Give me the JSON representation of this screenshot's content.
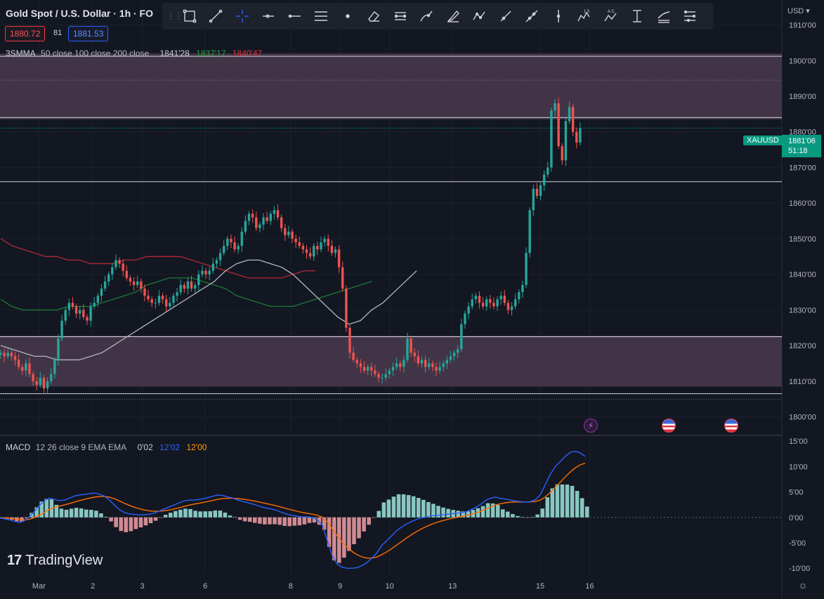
{
  "header": {
    "title": "Gold Spot / U.S. Dollar · 1h · FO",
    "bid": "1880.72",
    "spread": "81",
    "ask": "1881.53",
    "currency": "USD"
  },
  "smma": {
    "label": "3SMMA",
    "params": "50 close 100 close 200 close",
    "v1": "1841'28",
    "v2": "1837'17",
    "v3": "1840'47"
  },
  "macd": {
    "label": "MACD",
    "params": "12 26 close 9 EMA EMA",
    "hist": "0'02",
    "macd_val": "12'02",
    "signal_val": "12'00"
  },
  "symbol_label": "XAUUSD",
  "last_price": "1881'06",
  "countdown": "51:18",
  "brand": "TradingView",
  "toolbar_icons": [
    "rectangle-icon",
    "trend-line-icon",
    "crosshair-icon",
    "horizontal-ray-icon",
    "horizontal-line-icon",
    "parallel-channel-icon",
    "dot-icon",
    "eraser-icon",
    "regression-trend-icon",
    "brush-icon",
    "highlighter-icon",
    "polyline-icon",
    "ray-icon",
    "extended-line-icon",
    "vertical-line-icon",
    "elliott-wave-icon",
    "abcd-pattern-icon",
    "price-range-icon",
    "fib-retracement-icon",
    "fib-channel-icon"
  ],
  "events": [
    "flash-event-icon",
    "us-flag-icon",
    "us-flag-icon"
  ],
  "colors": {
    "up": "#26a69a",
    "down": "#ef5350",
    "smma50": "#b2b5be",
    "smma100": "#1b7a36",
    "smma200": "#b22833",
    "macd": "#2962ff",
    "signal": "#ff6d00",
    "zone": "#4a3a4c"
  },
  "chart_data": [
    {
      "type": "candlestick",
      "title": "Gold Spot / U.S. Dollar · 1h",
      "y_ticks": [
        "1800'00",
        "1810'00",
        "1820'00",
        "1830'00",
        "1840'00",
        "1850'00",
        "1860'00",
        "1870'00",
        "1880'00",
        "1890'00",
        "1900'00",
        "1910'00"
      ],
      "y_range": [
        1795,
        1917
      ],
      "x_ticks": [
        {
          "label": "Mar",
          "bar": 17
        },
        {
          "label": "2",
          "bar": 41
        },
        {
          "label": "3",
          "bar": 63
        },
        {
          "label": "6",
          "bar": 91
        },
        {
          "label": "8",
          "bar": 129
        },
        {
          "label": "9",
          "bar": 151
        },
        {
          "label": "10",
          "bar": 173
        },
        {
          "label": "13",
          "bar": 201
        },
        {
          "label": "15",
          "bar": 240
        },
        {
          "label": "16",
          "bar": 262
        }
      ],
      "closes": [
        1818,
        1817,
        1818,
        1817,
        1816,
        1814,
        1813,
        1815,
        1812,
        1810,
        1809,
        1811,
        1808,
        1810,
        1812,
        1816,
        1822,
        1827,
        1830,
        1832,
        1831,
        1829,
        1830,
        1828,
        1827,
        1831,
        1832,
        1834,
        1836,
        1838,
        1840,
        1842,
        1844,
        1843,
        1841,
        1839,
        1838,
        1837,
        1838,
        1836,
        1834,
        1833,
        1832,
        1832,
        1834,
        1833,
        1831,
        1832,
        1834,
        1835,
        1837,
        1836,
        1838,
        1836,
        1837,
        1840,
        1841,
        1840,
        1841,
        1843,
        1844,
        1846,
        1848,
        1850,
        1849,
        1847,
        1848,
        1852,
        1855,
        1857,
        1856,
        1853,
        1854,
        1856,
        1855,
        1857,
        1858,
        1856,
        1853,
        1851,
        1852,
        1850,
        1849,
        1848,
        1847,
        1846,
        1845,
        1848,
        1847,
        1849,
        1850,
        1848,
        1846,
        1847,
        1842,
        1836,
        1825,
        1818,
        1816,
        1815,
        1814,
        1813,
        1814,
        1813,
        1812,
        1811,
        1811,
        1812,
        1813,
        1814,
        1815,
        1814,
        1816,
        1822,
        1818,
        1817,
        1815,
        1816,
        1814,
        1815,
        1814,
        1813,
        1814,
        1815,
        1816,
        1817,
        1818,
        1819,
        1826,
        1829,
        1831,
        1833,
        1834,
        1832,
        1831,
        1833,
        1832,
        1831,
        1833,
        1834,
        1832,
        1830,
        1831,
        1833,
        1835,
        1837,
        1846,
        1858,
        1864,
        1862,
        1865,
        1868,
        1870,
        1886,
        1888,
        1876,
        1872,
        1883,
        1887,
        1880,
        1877,
        1881
      ],
      "zones": [
        [
          1883.5,
          1902
        ],
        [
          1808.5,
          1822.8
        ]
      ],
      "horizontal_lines": [
        1901.2,
        1894.5,
        1884,
        1881,
        1866,
        1822.5,
        1806.5,
        1805
      ],
      "smma50": [
        1820,
        1819,
        1818,
        1817,
        1817,
        1816,
        1816,
        1816,
        1817,
        1818,
        1820,
        1822,
        1824,
        1826,
        1828,
        1830,
        1832,
        1834,
        1836,
        1838,
        1841,
        1843,
        1844,
        1844,
        1843,
        1842,
        1840,
        1837,
        1834,
        1831,
        1828,
        1826,
        1827,
        1830,
        1832,
        1835,
        1838,
        1841
      ],
      "smma100": [
        1833,
        1831,
        1830,
        1830,
        1830,
        1830,
        1831,
        1831,
        1831,
        1832,
        1833,
        1834,
        1835,
        1837,
        1838,
        1839,
        1839,
        1839,
        1838,
        1837,
        1836,
        1834,
        1833,
        1832,
        1831,
        1831,
        1831,
        1832,
        1833,
        1834,
        1835,
        1836,
        1837,
        1838
      ],
      "smma200": [
        1850,
        1848,
        1847,
        1846,
        1845,
        1845,
        1844,
        1844,
        1843,
        1843,
        1843,
        1844,
        1844,
        1845,
        1845,
        1845,
        1845,
        1844,
        1843,
        1842,
        1841,
        1840,
        1839,
        1839,
        1839,
        1839,
        1840,
        1841,
        1841
      ]
    },
    {
      "type": "macd",
      "y_ticks": [
        "15'00",
        "10'00",
        "5'00",
        "0'00",
        "-5'00",
        "-10'00"
      ],
      "y_range": [
        -11.5,
        16
      ],
      "macd": [
        -0.1,
        -0.3,
        -0.5,
        -0.8,
        -1,
        -0.6,
        0.2,
        1.2,
        2.4,
        3.3,
        3.8,
        3.5,
        3.3,
        3.4,
        3.8,
        4.2,
        4.4,
        4.5,
        4.7,
        4.8,
        4.6,
        4.2,
        3.5,
        2.5,
        1.6,
        1,
        0.7,
        0.6,
        0.5,
        0.5,
        0.6,
        0.8,
        1.2,
        1.6,
        2,
        2.4,
        2.8,
        3.2,
        3.4,
        3.4,
        3.5,
        3.7,
        3.9,
        4.2,
        4.4,
        4.3,
        4,
        3.8,
        3.4,
        3.1,
        2.9,
        2.6,
        2.3,
        2,
        1.8,
        1.6,
        1.3,
        0.9,
        0.6,
        0.4,
        0.2,
        0.1,
        0.1,
        0,
        -0.5,
        -1.5,
        -4.5,
        -7.5,
        -9.2,
        -9.8,
        -10,
        -10,
        -9.9,
        -9.5,
        -8.9,
        -8,
        -7,
        -5.5,
        -4.6,
        -3.6,
        -2.6,
        -1.9,
        -1.3,
        -0.8,
        -0.4,
        -0.1,
        0.1,
        0.3,
        0.4,
        0.5,
        0.6,
        0.7,
        0.8,
        0.9,
        1.1,
        1.5,
        2,
        2.6,
        3.4,
        3.8,
        4,
        3.7,
        3.6,
        3.4,
        3.2,
        3.1,
        3,
        3.1,
        3.5,
        4.5,
        6.5,
        8.5,
        10,
        11,
        12,
        12.8,
        13,
        12.7,
        12
      ]
    }
  ]
}
